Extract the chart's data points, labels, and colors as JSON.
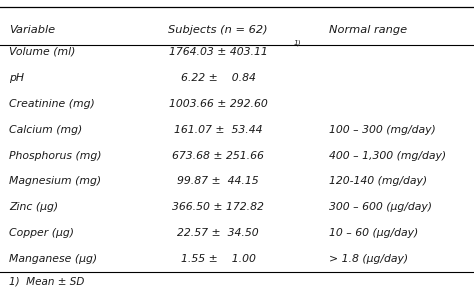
{
  "headers": [
    "Variable",
    "Subjects (n = 62)",
    "Normal range"
  ],
  "rows": [
    [
      "Volume (ml)",
      "1764.03 ± 403.11",
      "1)",
      ""
    ],
    [
      "pH",
      "6.22 ±    0.84",
      "",
      ""
    ],
    [
      "Creatinine (mg)",
      "1003.66 ± 292.60",
      "",
      ""
    ],
    [
      "Calcium (mg)",
      "161.07 ±  53.44",
      "",
      "100 – 300 (mg/day)"
    ],
    [
      "Phosphorus (mg)",
      "673.68 ± 251.66",
      "",
      "400 – 1,300 (mg/day)"
    ],
    [
      "Magnesium (mg)",
      "99.87 ±  44.15",
      "",
      "120-140 (mg/day)"
    ],
    [
      "Zinc (μg)",
      "366.50 ± 172.82",
      "",
      "300 – 600 (μg/day)"
    ],
    [
      "Copper (μg)",
      "22.57 ±  34.50",
      "",
      "10 – 60 (μg/day)"
    ],
    [
      "Manganese (μg)",
      "1.55 ±    1.00",
      "",
      "> 1.8 (μg/day)"
    ]
  ],
  "footnote": "1)  Mean ± SD",
  "bg_color": "#ffffff",
  "text_color": "#1a1a1a",
  "header_fontsize": 8.2,
  "row_fontsize": 7.8,
  "footnote_fontsize": 7.5
}
